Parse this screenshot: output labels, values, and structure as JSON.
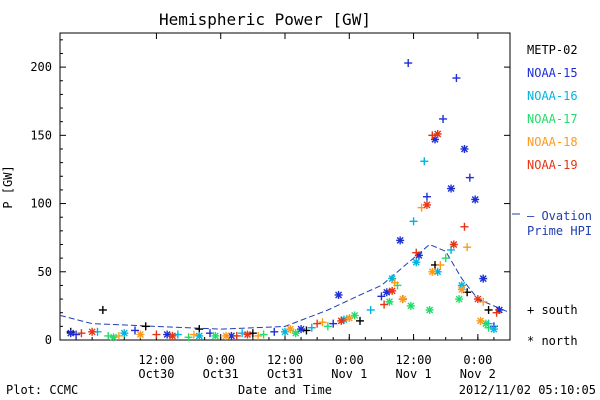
{
  "chart_data": {
    "type": "scatter",
    "title": "Hemispheric Power [GW]",
    "xlabel": "Date and Time",
    "ylabel": "P [GW]",
    "ylim": [
      0,
      225
    ],
    "xlim": [
      "2012-10-29T18:00",
      "2012-11-02T06:00"
    ],
    "grid": false,
    "yticks": [
      0,
      50,
      100,
      150,
      200
    ],
    "xticks": [
      {
        "t": "2012-10-30T12:00",
        "line1": "12:00",
        "line2": "Oct30"
      },
      {
        "t": "2012-10-31T00:00",
        "line1": "0:00",
        "line2": "Oct31"
      },
      {
        "t": "2012-10-31T12:00",
        "line1": "12:00",
        "line2": "Oct31"
      },
      {
        "t": "2012-11-01T00:00",
        "line1": "0:00",
        "line2": "Nov 1"
      },
      {
        "t": "2012-11-01T12:00",
        "line1": "12:00",
        "line2": "Nov 1"
      },
      {
        "t": "2012-11-02T00:00",
        "line1": "0:00",
        "line2": "Nov 2"
      }
    ],
    "legend_placement": "right",
    "satellites": [
      {
        "name": "METP-02",
        "color": "#000000"
      },
      {
        "name": "NOAA-15",
        "color": "#1f2fd6"
      },
      {
        "name": "NOAA-16",
        "color": "#00b4e0"
      },
      {
        "name": "NOAA-17",
        "color": "#22dd6a"
      },
      {
        "name": "NOAA-18",
        "color": "#ff9a1a"
      },
      {
        "name": "NOAA-19",
        "color": "#e83414"
      }
    ],
    "ovation": {
      "label_line1": "— Ovation",
      "label_line2": "Prime HPI",
      "color": "#1f3fb0"
    },
    "markers": {
      "south": "+ south",
      "north": "* north"
    },
    "series": [
      {
        "satellite": "METP-02",
        "marker": "+",
        "points": [
          [
            "2012-10-29T20:00",
            6
          ],
          [
            "2012-10-30T02:00",
            22
          ],
          [
            "2012-10-30T10:00",
            10
          ],
          [
            "2012-10-30T20:00",
            8
          ],
          [
            "2012-10-31T06:00",
            5
          ],
          [
            "2012-10-31T16:00",
            7
          ],
          [
            "2012-11-01T02:00",
            14
          ],
          [
            "2012-11-01T10:00",
            30
          ],
          [
            "2012-11-01T16:00",
            55
          ],
          [
            "2012-11-01T22:00",
            35
          ],
          [
            "2012-11-02T02:00",
            22
          ]
        ]
      },
      {
        "satellite": "NOAA-15",
        "marker": "+",
        "points": [
          [
            "2012-10-29T21:00",
            4
          ],
          [
            "2012-10-30T08:00",
            7
          ],
          [
            "2012-10-30T22:00",
            5
          ],
          [
            "2012-10-31T10:00",
            6
          ],
          [
            "2012-10-31T21:00",
            12
          ],
          [
            "2012-11-01T06:00",
            32
          ],
          [
            "2012-11-01T11:00",
            203
          ],
          [
            "2012-11-01T14:30",
            105
          ],
          [
            "2012-11-01T17:30",
            162
          ],
          [
            "2012-11-01T20:00",
            192
          ],
          [
            "2012-11-01T22:30",
            119
          ],
          [
            "2012-11-02T03:00",
            10
          ]
        ]
      },
      {
        "satellite": "NOAA-15",
        "marker": "*",
        "points": [
          [
            "2012-10-29T20:00",
            5
          ],
          [
            "2012-10-30T14:00",
            4
          ],
          [
            "2012-10-31T02:00",
            3
          ],
          [
            "2012-10-31T15:00",
            8
          ],
          [
            "2012-10-31T22:00",
            33
          ],
          [
            "2012-11-01T07:00",
            35
          ],
          [
            "2012-11-01T09:30",
            73
          ],
          [
            "2012-11-01T13:00",
            62
          ],
          [
            "2012-11-01T16:00",
            147
          ],
          [
            "2012-11-01T19:00",
            111
          ],
          [
            "2012-11-01T21:30",
            140
          ],
          [
            "2012-11-01T23:30",
            103
          ],
          [
            "2012-11-02T01:00",
            45
          ],
          [
            "2012-11-02T04:00",
            22
          ]
        ]
      },
      {
        "satellite": "NOAA-16",
        "marker": "+",
        "points": [
          [
            "2012-10-30T01:00",
            6
          ],
          [
            "2012-10-30T16:00",
            4
          ],
          [
            "2012-10-31T04:00",
            5
          ],
          [
            "2012-10-31T17:00",
            9
          ],
          [
            "2012-11-01T04:00",
            22
          ],
          [
            "2012-11-01T12:00",
            87
          ],
          [
            "2012-11-01T14:00",
            131
          ],
          [
            "2012-11-01T19:00",
            66
          ],
          [
            "2012-11-02T02:00",
            12
          ]
        ]
      },
      {
        "satellite": "NOAA-16",
        "marker": "*",
        "points": [
          [
            "2012-10-30T06:00",
            5
          ],
          [
            "2012-10-30T20:00",
            3
          ],
          [
            "2012-10-31T12:00",
            6
          ],
          [
            "2012-10-31T23:00",
            15
          ],
          [
            "2012-11-01T08:00",
            45
          ],
          [
            "2012-11-01T12:30",
            57
          ],
          [
            "2012-11-01T16:30",
            50
          ],
          [
            "2012-11-01T21:00",
            40
          ],
          [
            "2012-11-02T03:00",
            8
          ]
        ]
      },
      {
        "satellite": "NOAA-17",
        "marker": "+",
        "points": [
          [
            "2012-10-30T03:00",
            3
          ],
          [
            "2012-10-30T18:00",
            2
          ],
          [
            "2012-10-31T08:00",
            4
          ],
          [
            "2012-10-31T20:00",
            10
          ],
          [
            "2012-11-01T09:00",
            40
          ],
          [
            "2012-11-01T18:00",
            60
          ],
          [
            "2012-11-02T02:00",
            9
          ]
        ]
      },
      {
        "satellite": "NOAA-17",
        "marker": "*",
        "points": [
          [
            "2012-10-30T04:00",
            2
          ],
          [
            "2012-10-30T23:00",
            3
          ],
          [
            "2012-10-31T14:00",
            5
          ],
          [
            "2012-11-01T01:00",
            18
          ],
          [
            "2012-11-01T07:30",
            28
          ],
          [
            "2012-11-01T11:30",
            25
          ],
          [
            "2012-11-01T15:00",
            22
          ],
          [
            "2012-11-01T20:30",
            30
          ],
          [
            "2012-11-02T01:30",
            12
          ]
        ]
      },
      {
        "satellite": "NOAA-18",
        "marker": "+",
        "points": [
          [
            "2012-10-30T05:00",
            3
          ],
          [
            "2012-10-30T19:00",
            4
          ],
          [
            "2012-10-31T07:00",
            3
          ],
          [
            "2012-10-31T19:00",
            13
          ],
          [
            "2012-11-01T08:30",
            42
          ],
          [
            "2012-11-01T13:30",
            97
          ],
          [
            "2012-11-01T17:00",
            55
          ],
          [
            "2012-11-01T22:00",
            68
          ],
          [
            "2012-11-02T01:00",
            28
          ]
        ]
      },
      {
        "satellite": "NOAA-18",
        "marker": "*",
        "points": [
          [
            "2012-10-30T09:00",
            4
          ],
          [
            "2012-10-31T01:00",
            3
          ],
          [
            "2012-10-31T13:00",
            8
          ],
          [
            "2012-11-01T00:00",
            16
          ],
          [
            "2012-11-01T10:00",
            30
          ],
          [
            "2012-11-01T15:30",
            50
          ],
          [
            "2012-11-01T21:00",
            37
          ],
          [
            "2012-11-02T00:30",
            14
          ]
        ]
      },
      {
        "satellite": "NOAA-19",
        "marker": "+",
        "points": [
          [
            "2012-10-29T22:00",
            5
          ],
          [
            "2012-10-30T12:00",
            4
          ],
          [
            "2012-10-31T03:00",
            3
          ],
          [
            "2012-10-31T18:00",
            12
          ],
          [
            "2012-11-01T06:30",
            26
          ],
          [
            "2012-11-01T12:30",
            64
          ],
          [
            "2012-11-01T15:30",
            150
          ],
          [
            "2012-11-01T21:30",
            83
          ],
          [
            "2012-11-02T03:30",
            20
          ]
        ]
      },
      {
        "satellite": "NOAA-19",
        "marker": "*",
        "points": [
          [
            "2012-10-30T00:00",
            6
          ],
          [
            "2012-10-30T15:00",
            3
          ],
          [
            "2012-10-31T05:00",
            4
          ],
          [
            "2012-10-31T22:30",
            14
          ],
          [
            "2012-11-01T08:00",
            36
          ],
          [
            "2012-11-01T14:30",
            99
          ],
          [
            "2012-11-01T16:30",
            151
          ],
          [
            "2012-11-01T19:30",
            70
          ],
          [
            "2012-11-02T00:00",
            30
          ]
        ]
      }
    ],
    "ovation_series": [
      [
        "2012-10-29T18:00",
        18
      ],
      [
        "2012-10-30T00:00",
        12
      ],
      [
        "2012-10-30T12:00",
        10
      ],
      [
        "2012-10-31T00:00",
        8
      ],
      [
        "2012-10-31T12:00",
        10
      ],
      [
        "2012-10-31T20:00",
        22
      ],
      [
        "2012-11-01T02:00",
        33
      ],
      [
        "2012-11-01T06:00",
        40
      ],
      [
        "2012-11-01T12:00",
        60
      ],
      [
        "2012-11-01T15:00",
        70
      ],
      [
        "2012-11-01T18:00",
        65
      ],
      [
        "2012-11-01T21:00",
        45
      ],
      [
        "2012-11-02T00:00",
        30
      ],
      [
        "2012-11-02T06:00",
        20
      ]
    ]
  },
  "footer": {
    "plot_credit": "Plot: CCMC",
    "timestamp": "2012/11/02 05:10:05"
  }
}
